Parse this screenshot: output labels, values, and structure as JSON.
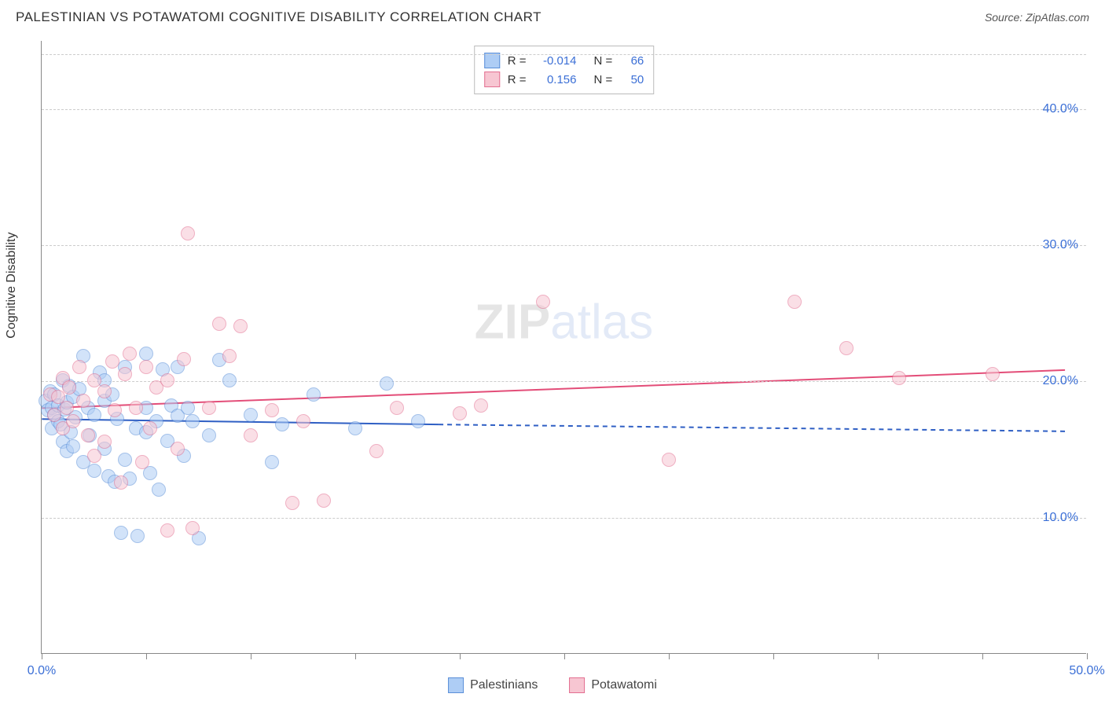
{
  "title": "PALESTINIAN VS POTAWATOMI COGNITIVE DISABILITY CORRELATION CHART",
  "source_label": "Source: ZipAtlas.com",
  "y_axis_label": "Cognitive Disability",
  "watermark": {
    "part1": "ZIP",
    "part2": "atlas"
  },
  "chart": {
    "type": "scatter",
    "xlim": [
      0,
      50
    ],
    "ylim": [
      0,
      45
    ],
    "x_ticks": [
      0,
      5,
      10,
      15,
      20,
      25,
      30,
      35,
      40,
      45,
      50
    ],
    "x_tick_labels": {
      "0": "0.0%",
      "50": "50.0%"
    },
    "y_gridlines": [
      10,
      20,
      30,
      40,
      44
    ],
    "y_tick_labels": {
      "10": "10.0%",
      "20": "20.0%",
      "30": "30.0%",
      "40": "40.0%"
    },
    "label_color": "#3b6fd6",
    "grid_color": "#cccccc",
    "point_radius": 9,
    "point_opacity": 0.55,
    "point_border_width": 1
  },
  "series": {
    "palestinians": {
      "label": "Palestinians",
      "fill_color": "#aecdf5",
      "border_color": "#5b8fd8",
      "trend": {
        "color": "#2f5fc4",
        "width": 2,
        "solid": {
          "x1": 0,
          "y1": 17.2,
          "x2": 19,
          "y2": 16.8
        },
        "dashed": {
          "x1": 19,
          "y1": 16.8,
          "x2": 49,
          "y2": 16.3
        }
      },
      "stats": {
        "R": "-0.014",
        "N": "66"
      },
      "points": [
        [
          0.2,
          18.5
        ],
        [
          0.3,
          17.8
        ],
        [
          0.4,
          19.2
        ],
        [
          0.5,
          16.5
        ],
        [
          0.5,
          18.0
        ],
        [
          0.6,
          17.5
        ],
        [
          0.6,
          19.0
        ],
        [
          0.8,
          17.0
        ],
        [
          0.8,
          18.2
        ],
        [
          0.9,
          16.8
        ],
        [
          1.0,
          20.0
        ],
        [
          1.0,
          15.5
        ],
        [
          1.1,
          17.9
        ],
        [
          1.2,
          18.4
        ],
        [
          1.2,
          14.8
        ],
        [
          1.3,
          19.6
        ],
        [
          1.4,
          16.2
        ],
        [
          1.5,
          18.8
        ],
        [
          1.5,
          15.2
        ],
        [
          1.6,
          17.3
        ],
        [
          1.8,
          19.4
        ],
        [
          2.0,
          21.8
        ],
        [
          2.0,
          14.0
        ],
        [
          2.2,
          18.0
        ],
        [
          2.3,
          16.0
        ],
        [
          2.5,
          13.4
        ],
        [
          2.5,
          17.5
        ],
        [
          2.8,
          20.6
        ],
        [
          3.0,
          15.0
        ],
        [
          3.0,
          18.5
        ],
        [
          3.2,
          13.0
        ],
        [
          3.4,
          19.0
        ],
        [
          3.5,
          12.6
        ],
        [
          3.6,
          17.2
        ],
        [
          3.8,
          8.8
        ],
        [
          4.0,
          14.2
        ],
        [
          4.0,
          21.0
        ],
        [
          4.2,
          12.8
        ],
        [
          4.5,
          16.5
        ],
        [
          4.6,
          8.6
        ],
        [
          5.0,
          22.0
        ],
        [
          5.0,
          18.0
        ],
        [
          5.2,
          13.2
        ],
        [
          5.5,
          17.0
        ],
        [
          5.6,
          12.0
        ],
        [
          5.8,
          20.8
        ],
        [
          6.0,
          15.6
        ],
        [
          6.2,
          18.2
        ],
        [
          6.5,
          17.4
        ],
        [
          6.5,
          21.0
        ],
        [
          6.8,
          14.5
        ],
        [
          7.0,
          18.0
        ],
        [
          7.2,
          17.0
        ],
        [
          7.5,
          8.4
        ],
        [
          8.0,
          16.0
        ],
        [
          8.5,
          21.5
        ],
        [
          9.0,
          20.0
        ],
        [
          10.0,
          17.5
        ],
        [
          11.0,
          14.0
        ],
        [
          11.5,
          16.8
        ],
        [
          13.0,
          19.0
        ],
        [
          15.0,
          16.5
        ],
        [
          16.5,
          19.8
        ],
        [
          18.0,
          17.0
        ],
        [
          5.0,
          16.2
        ],
        [
          3.0,
          20.0
        ]
      ]
    },
    "potawatomi": {
      "label": "Potawatomi",
      "fill_color": "#f7c6d2",
      "border_color": "#e36f91",
      "trend": {
        "color": "#e34d78",
        "width": 2,
        "solid": {
          "x1": 0,
          "y1": 18.0,
          "x2": 49,
          "y2": 20.8
        },
        "dashed": null
      },
      "stats": {
        "R": "0.156",
        "N": "50"
      },
      "points": [
        [
          0.4,
          19.0
        ],
        [
          0.6,
          17.5
        ],
        [
          0.8,
          18.8
        ],
        [
          1.0,
          20.2
        ],
        [
          1.0,
          16.5
        ],
        [
          1.3,
          19.5
        ],
        [
          1.5,
          17.0
        ],
        [
          1.8,
          21.0
        ],
        [
          2.0,
          18.5
        ],
        [
          2.2,
          16.0
        ],
        [
          2.5,
          20.0
        ],
        [
          2.5,
          14.5
        ],
        [
          3.0,
          19.2
        ],
        [
          3.0,
          15.5
        ],
        [
          3.4,
          21.4
        ],
        [
          3.5,
          17.8
        ],
        [
          3.8,
          12.5
        ],
        [
          4.0,
          20.5
        ],
        [
          4.5,
          18.0
        ],
        [
          4.8,
          14.0
        ],
        [
          5.0,
          21.0
        ],
        [
          5.2,
          16.5
        ],
        [
          5.5,
          19.5
        ],
        [
          6.0,
          9.0
        ],
        [
          6.0,
          20.0
        ],
        [
          6.5,
          15.0
        ],
        [
          6.8,
          21.6
        ],
        [
          7.0,
          30.8
        ],
        [
          7.2,
          9.2
        ],
        [
          8.0,
          18.0
        ],
        [
          8.5,
          24.2
        ],
        [
          9.0,
          21.8
        ],
        [
          9.5,
          24.0
        ],
        [
          10.0,
          16.0
        ],
        [
          11.0,
          17.8
        ],
        [
          12.0,
          11.0
        ],
        [
          12.5,
          17.0
        ],
        [
          13.5,
          11.2
        ],
        [
          16.0,
          14.8
        ],
        [
          17.0,
          18.0
        ],
        [
          20.0,
          17.6
        ],
        [
          21.0,
          18.2
        ],
        [
          24.0,
          25.8
        ],
        [
          30.0,
          14.2
        ],
        [
          36.0,
          25.8
        ],
        [
          38.5,
          22.4
        ],
        [
          41.0,
          20.2
        ],
        [
          45.5,
          20.5
        ],
        [
          1.2,
          18.0
        ],
        [
          4.2,
          22.0
        ]
      ]
    }
  },
  "stats_box_labels": {
    "R": "R =",
    "N": "N ="
  },
  "legend_order": [
    "palestinians",
    "potawatomi"
  ]
}
